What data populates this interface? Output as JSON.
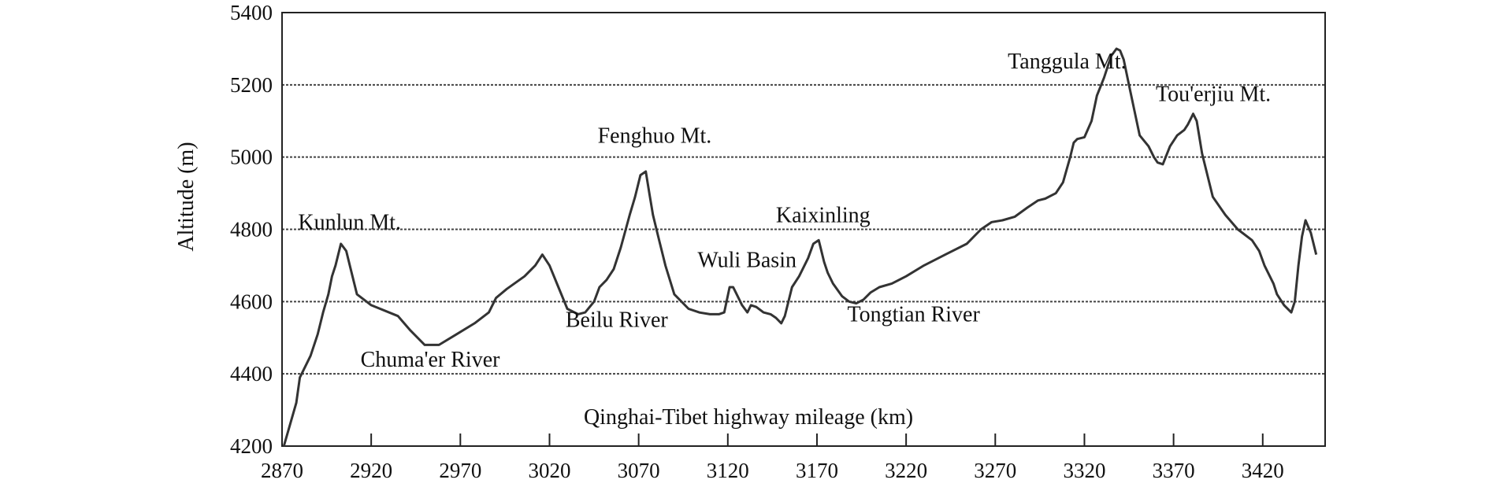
{
  "chart_data": {
    "type": "line",
    "title": "",
    "xlabel": "Qinghai-Tibet highway mileage (km)",
    "ylabel": "Altitude (m)",
    "xlim": [
      2870,
      3455
    ],
    "ylim": [
      4200,
      5400
    ],
    "x_ticks": [
      2870,
      2920,
      2970,
      3020,
      3070,
      3120,
      3170,
      3220,
      3270,
      3320,
      3370,
      3420
    ],
    "y_ticks": [
      4200,
      4400,
      4600,
      4800,
      5000,
      5200,
      5400
    ],
    "grid": "horizontal dashed",
    "series": [
      {
        "x": [
          2871,
          2878,
          2880,
          2886,
          2890,
          2893,
          2896,
          2898,
          2900,
          2903,
          2906,
          2908,
          2912,
          2920,
          2935,
          2942,
          2950,
          2958,
          2968,
          2978,
          2986,
          2990,
          2996,
          3006,
          3012,
          3016,
          3020,
          3025,
          3030,
          3036,
          3040,
          3045,
          3048,
          3052,
          3056,
          3060,
          3065,
          3068,
          3071,
          3074,
          3076,
          3078,
          3081,
          3085,
          3090,
          3098,
          3104,
          3110,
          3115,
          3118,
          3121,
          3123,
          3125,
          3128,
          3131,
          3133,
          3136,
          3140,
          3144,
          3147,
          3150,
          3152,
          3156,
          3160,
          3165,
          3168,
          3171,
          3172,
          3174,
          3176,
          3179,
          3184,
          3188,
          3192,
          3196,
          3200,
          3205,
          3212,
          3220,
          3230,
          3242,
          3254,
          3262,
          3268,
          3274,
          3281,
          3288,
          3294,
          3298,
          3304,
          3308,
          3312,
          3314,
          3316,
          3320,
          3324,
          3327,
          3331,
          3335,
          3338,
          3340,
          3342,
          3345,
          3348,
          3351,
          3356,
          3359,
          3361,
          3364,
          3368,
          3372,
          3376,
          3378,
          3380,
          3381,
          3383,
          3386,
          3392,
          3399,
          3406,
          3414,
          3418,
          3421,
          3426,
          3428,
          3432,
          3436,
          3438,
          3440,
          3442,
          3444,
          3447,
          3450
        ],
        "y": [
          4200,
          4320,
          4390,
          4450,
          4510,
          4570,
          4620,
          4670,
          4700,
          4760,
          4740,
          4700,
          4620,
          4590,
          4560,
          4520,
          4480,
          4480,
          4510,
          4540,
          4570,
          4610,
          4635,
          4670,
          4700,
          4730,
          4700,
          4640,
          4580,
          4565,
          4570,
          4600,
          4640,
          4660,
          4690,
          4750,
          4840,
          4890,
          4950,
          4960,
          4900,
          4840,
          4780,
          4700,
          4620,
          4580,
          4570,
          4565,
          4565,
          4570,
          4640,
          4640,
          4620,
          4590,
          4570,
          4590,
          4585,
          4570,
          4565,
          4555,
          4540,
          4560,
          4640,
          4670,
          4720,
          4760,
          4770,
          4750,
          4710,
          4680,
          4650,
          4615,
          4600,
          4595,
          4605,
          4625,
          4640,
          4650,
          4670,
          4700,
          4730,
          4760,
          4800,
          4820,
          4825,
          4835,
          4860,
          4880,
          4885,
          4900,
          4930,
          5000,
          5040,
          5050,
          5055,
          5100,
          5170,
          5220,
          5280,
          5300,
          5295,
          5270,
          5200,
          5130,
          5060,
          5030,
          5000,
          4985,
          4980,
          5030,
          5060,
          5075,
          5090,
          5110,
          5120,
          5100,
          5010,
          4890,
          4840,
          4800,
          4770,
          4740,
          4700,
          4650,
          4620,
          4590,
          4570,
          4600,
          4700,
          4780,
          4825,
          4790,
          4730
        ]
      }
    ],
    "annotations": [
      {
        "text": "Kunlun Mt.",
        "x": 2879,
        "y": 4800
      },
      {
        "text": "Chuma'er River",
        "x": 2914,
        "y": 4420
      },
      {
        "text": "Beilu River",
        "x": 3029,
        "y": 4530
      },
      {
        "text": "Fenghuo Mt.",
        "x": 3047,
        "y": 5040
      },
      {
        "text": "Wuli Basin",
        "x": 3103,
        "y": 4695
      },
      {
        "text": "Kaixinling",
        "x": 3147,
        "y": 4820
      },
      {
        "text": "Tongtian River",
        "x": 3187,
        "y": 4545
      },
      {
        "text": "Tanggula Mt.",
        "x": 3277,
        "y": 5245
      },
      {
        "text": "Tou'erjiu Mt.",
        "x": 3360,
        "y": 5155
      }
    ]
  }
}
